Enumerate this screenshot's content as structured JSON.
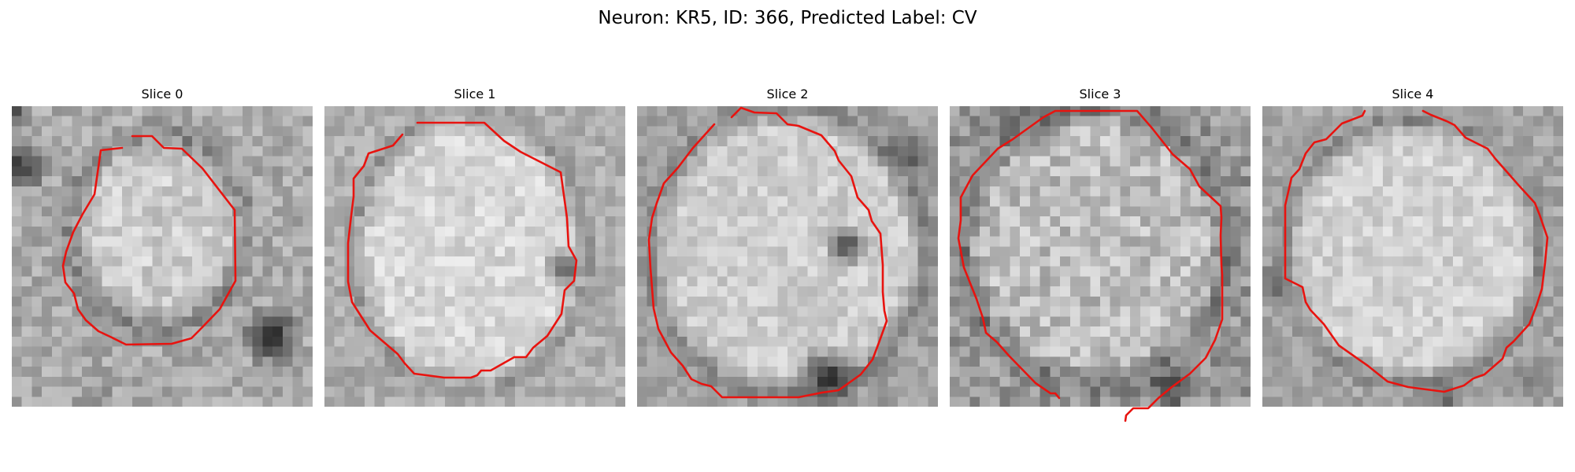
{
  "figure": {
    "title": "Neuron: KR5, ID: 366, Predicted Label: CV"
  },
  "colors": {
    "background": "#ffffff",
    "contour": "#e8130f",
    "colormap": "gray"
  },
  "panels": [
    {
      "title": "Slice 0"
    },
    {
      "title": "Slice 1"
    },
    {
      "title": "Slice 2"
    },
    {
      "title": "Slice 3"
    },
    {
      "title": "Slice 4"
    }
  ]
}
